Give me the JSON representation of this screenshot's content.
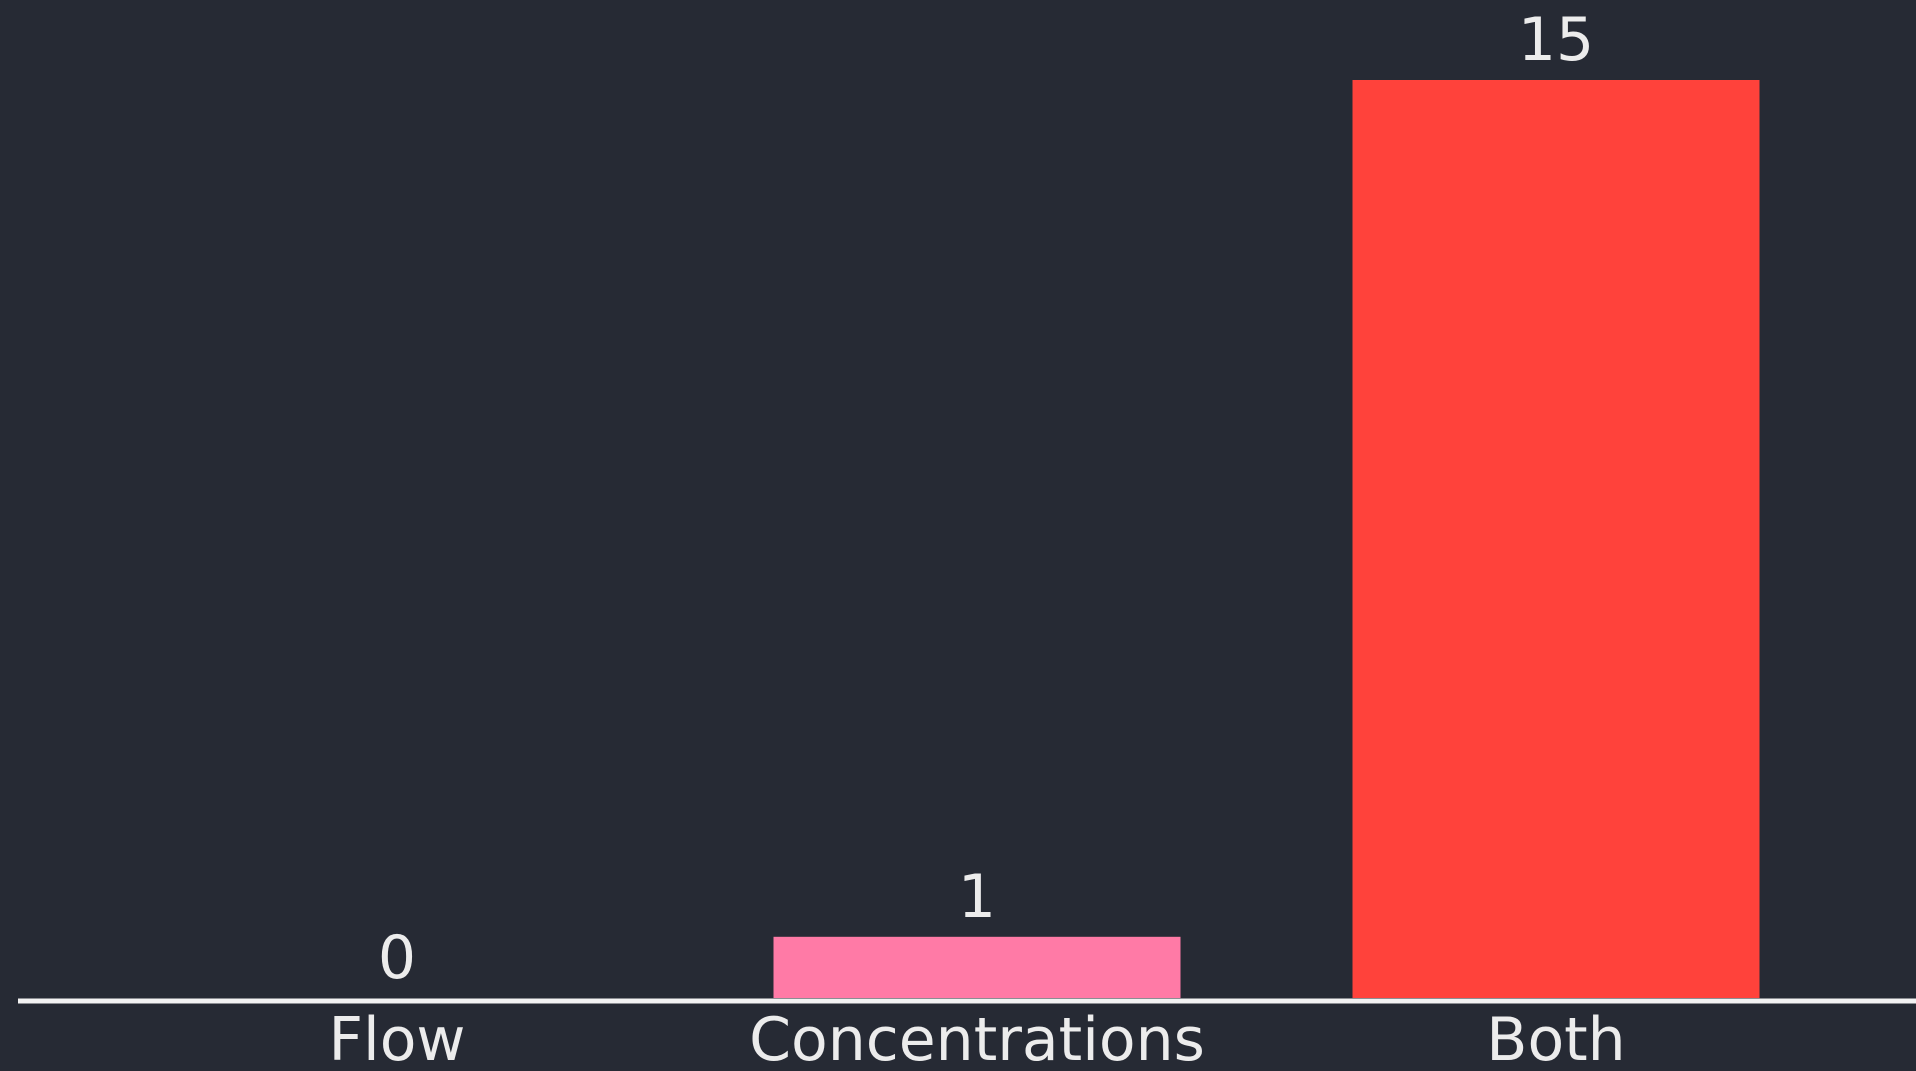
{
  "chart_data": {
    "type": "bar",
    "categories": [
      "Flow",
      "Concentrations",
      "Both"
    ],
    "values": [
      0,
      1,
      15
    ],
    "data_labels": [
      "0",
      "1",
      "15"
    ],
    "colors": [
      "#ff7aa6",
      "#ff7aa6",
      "#ff423b"
    ],
    "title": "",
    "xlabel": "",
    "ylabel": "",
    "ylim": [
      0,
      15
    ],
    "grid": false,
    "legend": "none"
  },
  "style": {
    "background": "#262a34",
    "axis_color": "#f2f2f2",
    "text_color": "#ececec"
  }
}
